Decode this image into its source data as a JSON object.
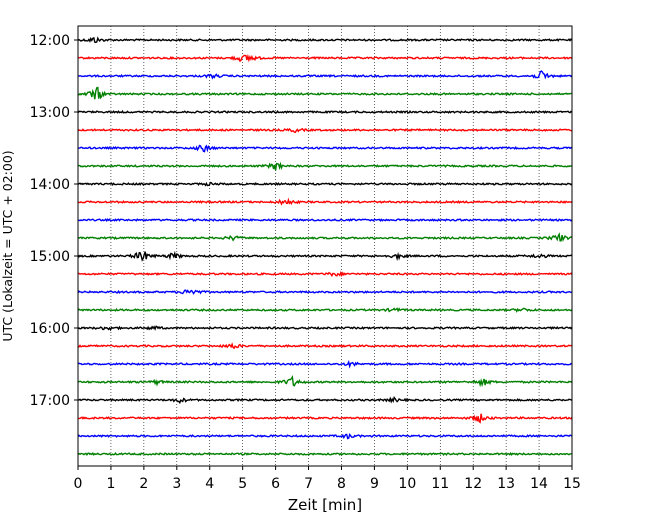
{
  "chart_data": {
    "type": "line",
    "title": "",
    "xlabel": "Zeit  [min]",
    "ylabel": "UTC (Lokalzeit = UTC + 02:00)",
    "xlim": [
      0,
      15
    ],
    "x_ticks": [
      "0",
      "1",
      "2",
      "3",
      "4",
      "5",
      "6",
      "7",
      "8",
      "9",
      "10",
      "11",
      "12",
      "13",
      "14",
      "15"
    ],
    "y_tick_labels": [
      "12:00",
      "13:00",
      "14:00",
      "15:00",
      "16:00",
      "17:00"
    ],
    "grid": "vertical dotted lines at each minute",
    "trace_colors": [
      "#000000",
      "#ff0000",
      "#0000ff",
      "#008000"
    ],
    "traces": [
      {
        "start": "12:00",
        "events": [
          {
            "t": 0.5,
            "amp": 0.35
          }
        ]
      },
      {
        "start": "12:15",
        "events": [
          {
            "t": 5.2,
            "amp": 0.4
          },
          {
            "t": 4.9,
            "amp": 0.25
          }
        ]
      },
      {
        "start": "12:30",
        "events": [
          {
            "t": 14.1,
            "amp": 0.6
          },
          {
            "t": 4.1,
            "amp": 0.2
          }
        ]
      },
      {
        "start": "12:45",
        "events": [
          {
            "t": 0.55,
            "amp": 0.9
          }
        ]
      },
      {
        "start": "13:00",
        "events": []
      },
      {
        "start": "13:15",
        "events": [
          {
            "t": 6.6,
            "amp": 0.2
          }
        ]
      },
      {
        "start": "13:30",
        "events": [
          {
            "t": 3.8,
            "amp": 0.45
          }
        ]
      },
      {
        "start": "13:45",
        "events": [
          {
            "t": 6.0,
            "amp": 0.45
          }
        ]
      },
      {
        "start": "14:00",
        "events": [
          {
            "t": 4.0,
            "amp": 0.15
          }
        ]
      },
      {
        "start": "14:15",
        "events": [
          {
            "t": 6.3,
            "amp": 0.4
          }
        ]
      },
      {
        "start": "14:30",
        "events": []
      },
      {
        "start": "14:45",
        "events": [
          {
            "t": 4.7,
            "amp": 0.25
          },
          {
            "t": 14.6,
            "amp": 0.5
          }
        ]
      },
      {
        "start": "15:00",
        "events": [
          {
            "t": 1.95,
            "amp": 0.75
          },
          {
            "t": 2.9,
            "amp": 0.35
          },
          {
            "t": 9.7,
            "amp": 0.25
          },
          {
            "t": 14.0,
            "amp": 0.25
          }
        ]
      },
      {
        "start": "15:15",
        "events": [
          {
            "t": 7.8,
            "amp": 0.25
          }
        ]
      },
      {
        "start": "15:30",
        "events": [
          {
            "t": 3.4,
            "amp": 0.5
          }
        ]
      },
      {
        "start": "15:45",
        "events": [
          {
            "t": 9.6,
            "amp": 0.2
          },
          {
            "t": 13.5,
            "amp": 0.2
          }
        ]
      },
      {
        "start": "16:00",
        "events": [
          {
            "t": 0.9,
            "amp": 0.25
          },
          {
            "t": 2.3,
            "amp": 0.2
          }
        ]
      },
      {
        "start": "16:15",
        "events": [
          {
            "t": 4.7,
            "amp": 0.3
          }
        ]
      },
      {
        "start": "16:30",
        "events": [
          {
            "t": 8.3,
            "amp": 0.25
          }
        ]
      },
      {
        "start": "16:45",
        "events": [
          {
            "t": 6.5,
            "amp": 0.6
          },
          {
            "t": 12.3,
            "amp": 0.4
          },
          {
            "t": 2.4,
            "amp": 0.2
          }
        ]
      },
      {
        "start": "17:00",
        "events": [
          {
            "t": 3.1,
            "amp": 0.25
          },
          {
            "t": 9.6,
            "amp": 0.2
          }
        ]
      },
      {
        "start": "17:15",
        "events": [
          {
            "t": 12.2,
            "amp": 0.5
          }
        ]
      },
      {
        "start": "17:30",
        "events": [
          {
            "t": 8.2,
            "amp": 0.25
          }
        ]
      },
      {
        "start": "17:45",
        "events": []
      }
    ]
  }
}
